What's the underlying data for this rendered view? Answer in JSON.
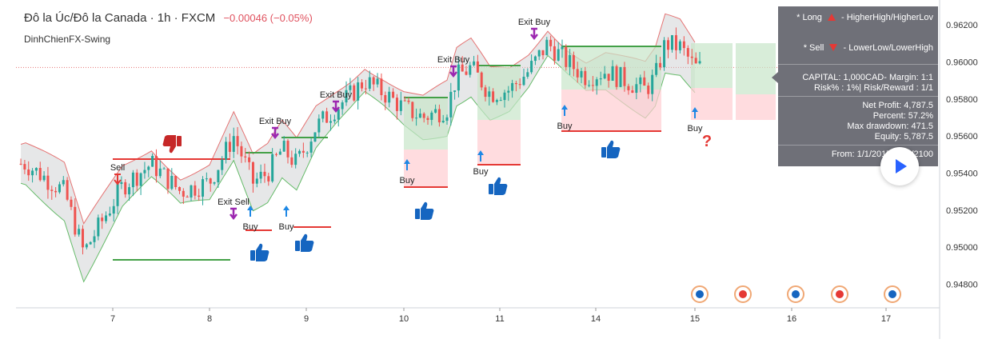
{
  "header": {
    "pair": "Đô la Úc/Đô la Canada",
    "timeframe": "1h",
    "exchange": "FXCM",
    "change": "−0.00046 (−0.05%)",
    "indicator": "DinhChienFX-Swing"
  },
  "info_panel": {
    "long_label": "* Long",
    "long_desc": "- HigherHigh/HigherLov",
    "sell_label": "* Sell",
    "sell_desc": "- LowerLow/LowerHigh",
    "capital": "CAPITAL: 1,000CAD- Margin: 1:1",
    "risk": "Risk% : 1%| Risk/Reward : 1/1",
    "net_profit": "Net Profit: 4,787.5",
    "percent": "Percent: 57.2%",
    "max_drawdown": "Max drawdown: 471.5",
    "equity": "Equity: 5,787.5",
    "from": "From: 1/1/2017 - 1/1/2100"
  },
  "colors": {
    "up_candle": "#26a69a",
    "down_candle": "#ef5350",
    "band_fill": "#c8c9cc",
    "band_upper": "#e57373",
    "band_lower": "#66bb6a",
    "green_zone": "#c8e6c9",
    "red_zone": "#ffcdd2",
    "marker_purple": "#9c27b0",
    "arrow_blue": "#1e88e5",
    "thumb_blue": "#1565c0",
    "panel_bg": "#6f7078"
  },
  "chart_data": {
    "type": "candlestick",
    "x_ticks": [
      "7",
      "8",
      "9",
      "10",
      "11",
      "14",
      "15",
      "16",
      "17"
    ],
    "y_ticks": [
      "0.96200",
      "0.96000",
      "0.95800",
      "0.95600",
      "0.95400",
      "0.95200",
      "0.95000",
      "0.94800"
    ],
    "ylim": [
      0.9475,
      0.963
    ],
    "close_series": [
      {
        "x": 6.1,
        "y": 0.9545
      },
      {
        "x": 6.5,
        "y": 0.953
      },
      {
        "x": 6.7,
        "y": 0.9497
      },
      {
        "x": 6.9,
        "y": 0.9515
      },
      {
        "x": 7.1,
        "y": 0.9533
      },
      {
        "x": 7.4,
        "y": 0.9545
      },
      {
        "x": 7.7,
        "y": 0.953
      },
      {
        "x": 8.0,
        "y": 0.9535
      },
      {
        "x": 8.25,
        "y": 0.956
      },
      {
        "x": 8.45,
        "y": 0.9535
      },
      {
        "x": 8.6,
        "y": 0.954
      },
      {
        "x": 8.75,
        "y": 0.9553
      },
      {
        "x": 8.9,
        "y": 0.9545
      },
      {
        "x": 9.1,
        "y": 0.9565
      },
      {
        "x": 9.3,
        "y": 0.9575
      },
      {
        "x": 9.45,
        "y": 0.9582
      },
      {
        "x": 9.6,
        "y": 0.959
      },
      {
        "x": 9.8,
        "y": 0.9583
      },
      {
        "x": 10.0,
        "y": 0.9575
      },
      {
        "x": 10.2,
        "y": 0.957
      },
      {
        "x": 10.45,
        "y": 0.9575
      },
      {
        "x": 10.55,
        "y": 0.9592
      },
      {
        "x": 10.7,
        "y": 0.9597
      },
      {
        "x": 10.9,
        "y": 0.9583
      },
      {
        "x": 11.1,
        "y": 0.9585
      },
      {
        "x": 11.3,
        "y": 0.9595
      },
      {
        "x": 11.5,
        "y": 0.961
      },
      {
        "x": 11.7,
        "y": 0.96
      },
      {
        "x": 11.9,
        "y": 0.9592
      },
      {
        "x": 12.1,
        "y": 0.9595
      },
      {
        "x": 12.3,
        "y": 0.959
      },
      {
        "x": 12.5,
        "y": 0.9585
      },
      {
        "x": 12.6,
        "y": 0.9592
      },
      {
        "x": 12.7,
        "y": 0.961
      },
      {
        "x": 12.85,
        "y": 0.9608
      },
      {
        "x": 13.0,
        "y": 0.9597
      }
    ],
    "annotations": [
      {
        "x": 7.0,
        "text": "Sell"
      },
      {
        "x": 8.25,
        "text": "Exit Sell"
      },
      {
        "x": 8.45,
        "text": "Buy"
      },
      {
        "x": 8.65,
        "text": "Exit Buy"
      },
      {
        "x": 8.85,
        "text": "Buy"
      },
      {
        "x": 9.3,
        "text": "Exit Buy"
      },
      {
        "x": 10.05,
        "text": "Buy"
      },
      {
        "x": 10.55,
        "text": "Exit Buy"
      },
      {
        "x": 10.85,
        "text": "Buy"
      },
      {
        "x": 11.35,
        "text": "Exit Buy"
      },
      {
        "x": 11.85,
        "text": "Buy"
      },
      {
        "x": 13.0,
        "text": "Buy"
      }
    ],
    "legend": "info-panel top-right",
    "grid": false
  }
}
